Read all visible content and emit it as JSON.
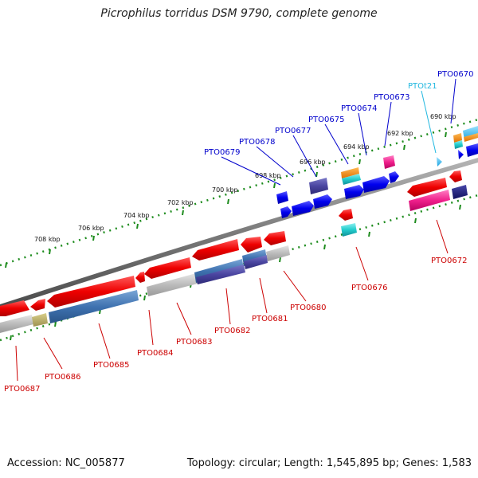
{
  "title": "Picrophilus torridus DSM 9790, complete genome",
  "footer": {
    "accession": "Accession: NC_005877",
    "summary": "Topology: circular; Length: 1,545,895 bp; Genes: 1,583"
  },
  "colors": {
    "forward_label": "#0000cc",
    "reverse_label": "#cc0000",
    "trna_label": "#22b8e0",
    "tick": "#1e8c1e",
    "backbone": "#777777"
  },
  "scale_labels": [
    "708 kbp",
    "706 kbp",
    "704 kbp",
    "702 kbp",
    "700 kbp",
    "698 kbp",
    "696 kbp",
    "694 kbp",
    "692 kbp",
    "690 kbp"
  ],
  "forward_genes": [
    {
      "name": "PTO0679",
      "color": "blue"
    },
    {
      "name": "PTO0678",
      "color": "blue"
    },
    {
      "name": "PTO0677",
      "color": "blue"
    },
    {
      "name": "PTO0675",
      "color": "blue"
    },
    {
      "name": "PTO0674",
      "color": "blue"
    },
    {
      "name": "PTO0673",
      "color": "blue"
    },
    {
      "name": "PTOt21",
      "color": "cyan"
    },
    {
      "name": "PTO0670",
      "color": "blue"
    }
  ],
  "reverse_genes": [
    {
      "name": "PTO0687"
    },
    {
      "name": "PTO0686"
    },
    {
      "name": "PTO0685"
    },
    {
      "name": "PTO0684"
    },
    {
      "name": "PTO0683"
    },
    {
      "name": "PTO0682"
    },
    {
      "name": "PTO0681"
    },
    {
      "name": "PTO0680"
    },
    {
      "name": "PTO0676"
    },
    {
      "name": "PTO0672"
    }
  ]
}
